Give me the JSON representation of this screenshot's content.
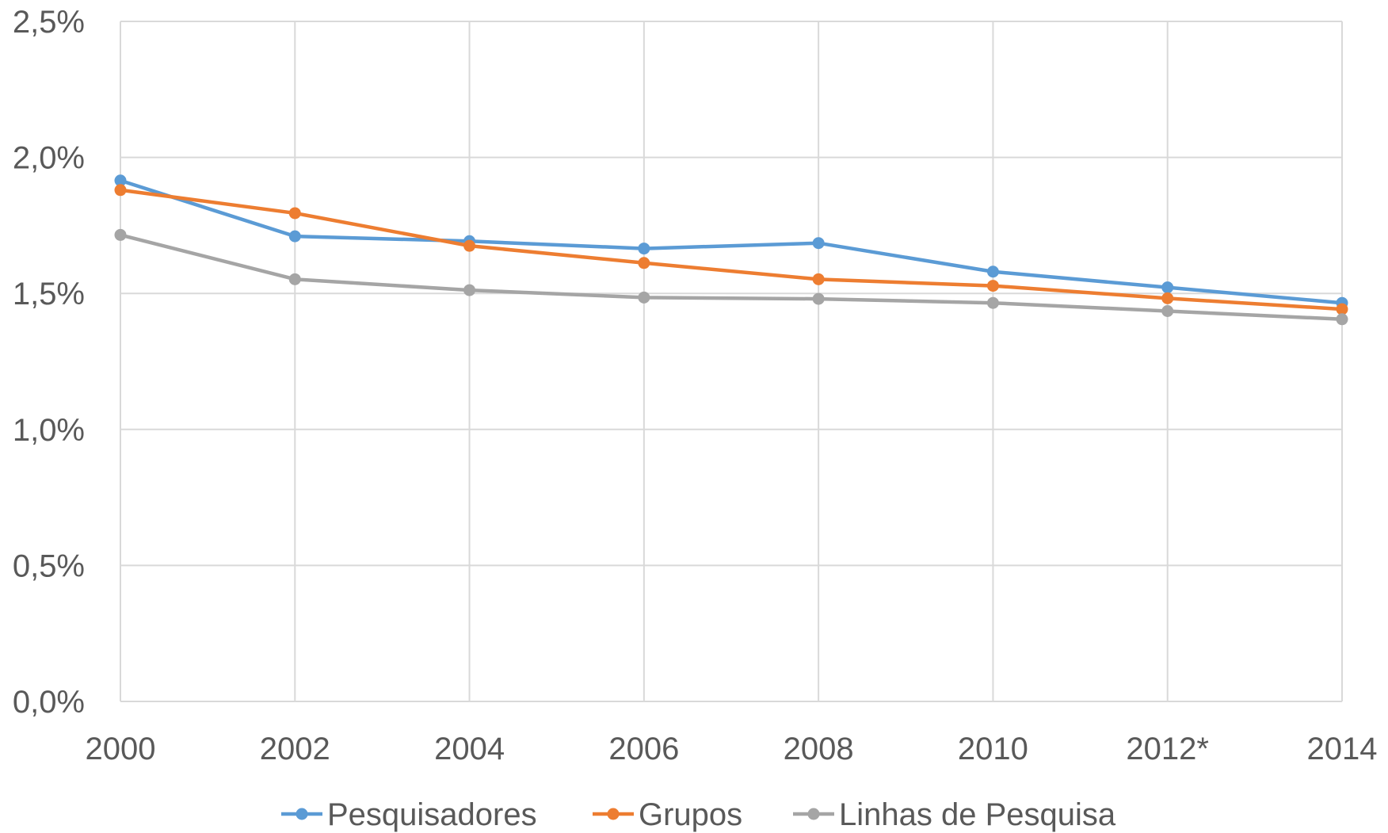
{
  "chart_data": {
    "type": "line",
    "title": "",
    "xlabel": "",
    "ylabel": "",
    "categories": [
      "2000",
      "2002",
      "2004",
      "2006",
      "2008",
      "2010",
      "2012*",
      "2014"
    ],
    "ylim": [
      0,
      0.025
    ],
    "y_ticks": [
      {
        "value": 0.0,
        "label": "0,0%"
      },
      {
        "value": 0.005,
        "label": "0,5%"
      },
      {
        "value": 0.01,
        "label": "1,0%"
      },
      {
        "value": 0.015,
        "label": "1,5%"
      },
      {
        "value": 0.02,
        "label": "2,0%"
      },
      {
        "value": 0.025,
        "label": "2,5%"
      }
    ],
    "grid": true,
    "legend_position": "bottom",
    "series": [
      {
        "name": "Pesquisadores",
        "color": "#5B9BD5",
        "values": [
          0.01915,
          0.0171,
          0.01692,
          0.01665,
          0.01685,
          0.0158,
          0.01522,
          0.01465
        ]
      },
      {
        "name": "Grupos",
        "color": "#ED7D31",
        "values": [
          0.0188,
          0.01795,
          0.01675,
          0.01612,
          0.01552,
          0.01528,
          0.01482,
          0.01442
        ]
      },
      {
        "name": "Linhas de Pesquisa",
        "color": "#A5A5A5",
        "values": [
          0.01715,
          0.01552,
          0.01512,
          0.01485,
          0.0148,
          0.01465,
          0.01435,
          0.01405
        ]
      }
    ]
  }
}
